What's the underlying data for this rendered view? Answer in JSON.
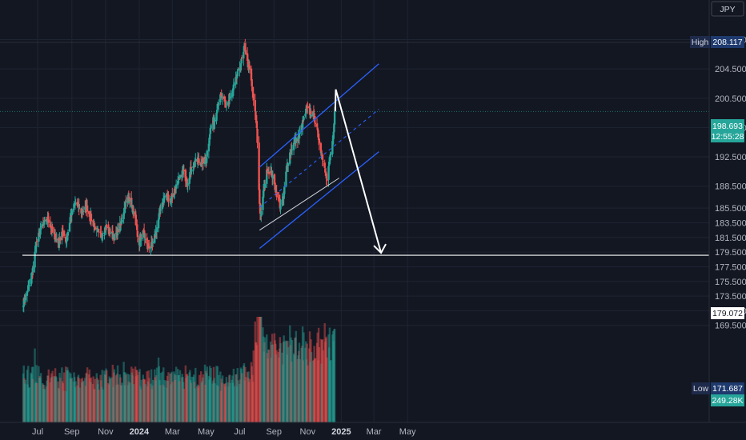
{
  "currency": "JPY",
  "colors": {
    "background": "#131722",
    "up": "#26a69a",
    "down": "#ef5350",
    "channel": "#2962ff",
    "projection": "#ffffff",
    "grid": "#1f2433",
    "axis_text": "#b2b5be"
  },
  "tags": {
    "high_label": "High",
    "high_value": "208.117",
    "last_price": "198.693",
    "countdown": "12:55:28",
    "support_value": "179.072",
    "low_label": "Low",
    "low_value": "171.687",
    "volume_value": "249.28K"
  },
  "chart_data": {
    "type": "candlestick",
    "title": "",
    "xlabel": "",
    "ylabel": "",
    "ylim": [
      168.4,
      212.0
    ],
    "y_ticks": [
      "169.500",
      "171.500",
      "173.500",
      "175.500",
      "177.500",
      "179.500",
      "181.500",
      "183.500",
      "185.500",
      "188.500",
      "192.500",
      "196.500",
      "200.500",
      "204.500",
      "208.500"
    ],
    "x_ticks": [
      {
        "label": "Jul",
        "date": "2023-07-01"
      },
      {
        "label": "Sep",
        "date": "2023-09-01"
      },
      {
        "label": "Nov",
        "date": "2023-11-01"
      },
      {
        "label": "2024",
        "date": "2024-01-01",
        "bold": true
      },
      {
        "label": "Mar",
        "date": "2024-03-01"
      },
      {
        "label": "May",
        "date": "2024-05-01"
      },
      {
        "label": "Jul",
        "date": "2024-07-01"
      },
      {
        "label": "Sep",
        "date": "2024-09-01"
      },
      {
        "label": "Nov",
        "date": "2024-11-01"
      },
      {
        "label": "2025",
        "date": "2025-01-01",
        "bold": true
      },
      {
        "label": "Mar",
        "date": "2025-03-01"
      },
      {
        "label": "May",
        "date": "2025-05-01"
      }
    ],
    "high": 208.117,
    "low": 171.687,
    "last": 198.693,
    "support_level": 179.072,
    "price_path": [
      [
        "2023-06-05",
        172.6
      ],
      [
        "2023-06-20",
        175.9
      ],
      [
        "2023-06-28",
        180.5
      ],
      [
        "2023-07-08",
        183.0
      ],
      [
        "2023-07-20",
        184.0
      ],
      [
        "2023-07-28",
        182.2
      ],
      [
        "2023-08-08",
        180.6
      ],
      [
        "2023-08-14",
        182.4
      ],
      [
        "2023-08-22",
        181.0
      ],
      [
        "2023-08-30",
        184.5
      ],
      [
        "2023-09-08",
        186.2
      ],
      [
        "2023-09-18",
        185.0
      ],
      [
        "2023-09-28",
        185.6
      ],
      [
        "2023-10-06",
        184.0
      ],
      [
        "2023-10-16",
        182.4
      ],
      [
        "2023-10-24",
        181.8
      ],
      [
        "2023-11-02",
        183.0
      ],
      [
        "2023-11-10",
        182.2
      ],
      [
        "2023-11-18",
        181.5
      ],
      [
        "2023-11-28",
        183.2
      ],
      [
        "2023-12-06",
        185.8
      ],
      [
        "2023-12-12",
        187.0
      ],
      [
        "2023-12-18",
        186.0
      ],
      [
        "2023-12-26",
        183.5
      ],
      [
        "2023-12-31",
        180.4
      ],
      [
        "2024-01-08",
        182.5
      ],
      [
        "2024-01-14",
        180.5
      ],
      [
        "2024-01-20",
        180.2
      ],
      [
        "2024-01-26",
        180.6
      ],
      [
        "2024-02-03",
        183.2
      ],
      [
        "2024-02-10",
        186.0
      ],
      [
        "2024-02-18",
        187.4
      ],
      [
        "2024-02-26",
        186.5
      ],
      [
        "2024-03-06",
        188.2
      ],
      [
        "2024-03-14",
        189.4
      ],
      [
        "2024-03-20",
        190.6
      ],
      [
        "2024-03-28",
        189.0
      ],
      [
        "2024-04-06",
        191.4
      ],
      [
        "2024-04-16",
        192.0
      ],
      [
        "2024-04-22",
        191.6
      ],
      [
        "2024-05-01",
        192.3
      ],
      [
        "2024-05-06",
        194.6
      ],
      [
        "2024-05-10",
        196.8
      ],
      [
        "2024-05-16",
        197.3
      ],
      [
        "2024-05-22",
        199.8
      ],
      [
        "2024-05-28",
        200.8
      ],
      [
        "2024-06-06",
        199.5
      ],
      [
        "2024-06-16",
        200.8
      ],
      [
        "2024-06-24",
        203.0
      ],
      [
        "2024-07-02",
        205.0
      ],
      [
        "2024-07-08",
        206.6
      ],
      [
        "2024-07-10",
        207.9
      ],
      [
        "2024-07-14",
        205.6
      ],
      [
        "2024-07-20",
        204.0
      ],
      [
        "2024-07-26",
        200.2
      ],
      [
        "2024-08-01",
        196.5
      ],
      [
        "2024-08-04",
        190.5
      ],
      [
        "2024-08-06",
        186.0
      ],
      [
        "2024-08-08",
        184.0
      ],
      [
        "2024-08-12",
        187.2
      ],
      [
        "2024-08-20",
        190.8
      ],
      [
        "2024-08-28",
        190.2
      ],
      [
        "2024-09-04",
        188.0
      ],
      [
        "2024-09-12",
        185.8
      ],
      [
        "2024-09-18",
        186.8
      ],
      [
        "2024-09-24",
        191.0
      ],
      [
        "2024-09-30",
        193.0
      ],
      [
        "2024-10-08",
        194.5
      ],
      [
        "2024-10-16",
        195.2
      ],
      [
        "2024-10-24",
        197.4
      ],
      [
        "2024-10-30",
        199.0
      ],
      [
        "2024-11-04",
        198.8
      ],
      [
        "2024-11-12",
        198.2
      ],
      [
        "2024-11-18",
        196.2
      ],
      [
        "2024-11-24",
        193.8
      ],
      [
        "2024-12-02",
        191.0
      ],
      [
        "2024-12-06",
        189.6
      ],
      [
        "2024-12-10",
        191.6
      ],
      [
        "2024-12-14",
        193.4
      ],
      [
        "2024-12-18",
        195.6
      ],
      [
        "2024-12-21",
        198.7
      ]
    ],
    "channel": {
      "upper": [
        [
          "2024-08-06",
          191.1
        ],
        [
          "2025-03-10",
          205.2
        ]
      ],
      "middle": [
        [
          "2024-08-06",
          185.6
        ],
        [
          "2025-03-10",
          199.0
        ]
      ],
      "lower": [
        [
          "2024-08-06",
          180.0
        ],
        [
          "2025-03-10",
          193.2
        ]
      ]
    },
    "support_trend": [
      [
        "2024-08-06",
        182.5
      ],
      [
        "2024-12-28",
        189.6
      ]
    ],
    "projection": [
      [
        "2024-12-22",
        201.7
      ],
      [
        "2025-03-14",
        179.4
      ]
    ]
  }
}
